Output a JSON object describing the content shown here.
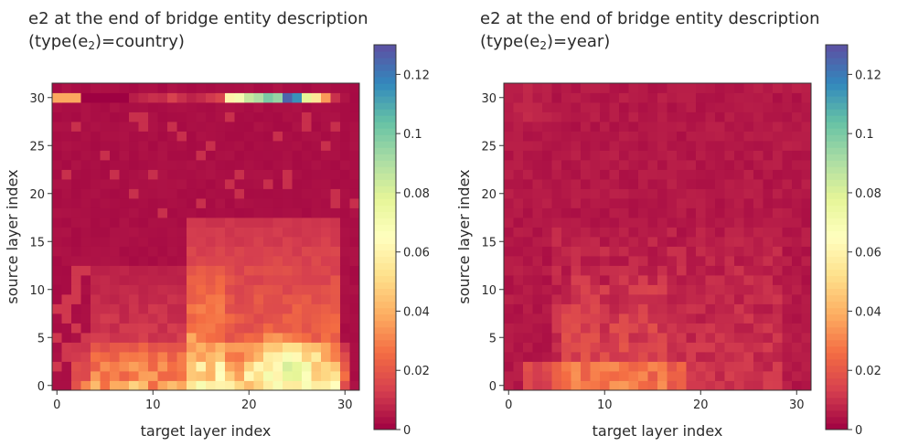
{
  "chart_data": [
    {
      "type": "heatmap",
      "title_main": "e2 at the end of bridge entity description",
      "title_pre": "(type(e",
      "title_sub": "2",
      "title_post": ")=country)",
      "xlabel": "target layer index",
      "ylabel": "source layer index",
      "x_ticks": [
        "0",
        "10",
        "20",
        "30"
      ],
      "y_ticks": [
        "0",
        "5",
        "10",
        "15",
        "20",
        "25",
        "30"
      ],
      "xlim": [
        -0.5,
        31.5
      ],
      "ylim": [
        -0.5,
        31.5
      ],
      "grid_size": 32,
      "colorbar_ticks": [
        "0",
        "0.02",
        "0.04",
        "0.06",
        "0.08",
        "0.1",
        "0.12"
      ],
      "colorbar_range": [
        0,
        0.13
      ],
      "colormap": "Spectral",
      "pattern": "country"
    },
    {
      "type": "heatmap",
      "title_main": "e2 at the end of bridge entity description",
      "title_pre": "(type(e",
      "title_sub": "2",
      "title_post": ")=year)",
      "xlabel": "target layer index",
      "ylabel": "source layer index",
      "x_ticks": [
        "0",
        "10",
        "20",
        "30"
      ],
      "y_ticks": [
        "0",
        "5",
        "10",
        "15",
        "20",
        "25",
        "30"
      ],
      "xlim": [
        -0.5,
        31.5
      ],
      "ylim": [
        -0.5,
        31.5
      ],
      "grid_size": 32,
      "colorbar_ticks": [
        "0",
        "0.02",
        "0.04",
        "0.06",
        "0.08",
        "0.1",
        "0.12"
      ],
      "colorbar_range": [
        0,
        0.13
      ],
      "colormap": "Spectral",
      "pattern": "year"
    }
  ]
}
